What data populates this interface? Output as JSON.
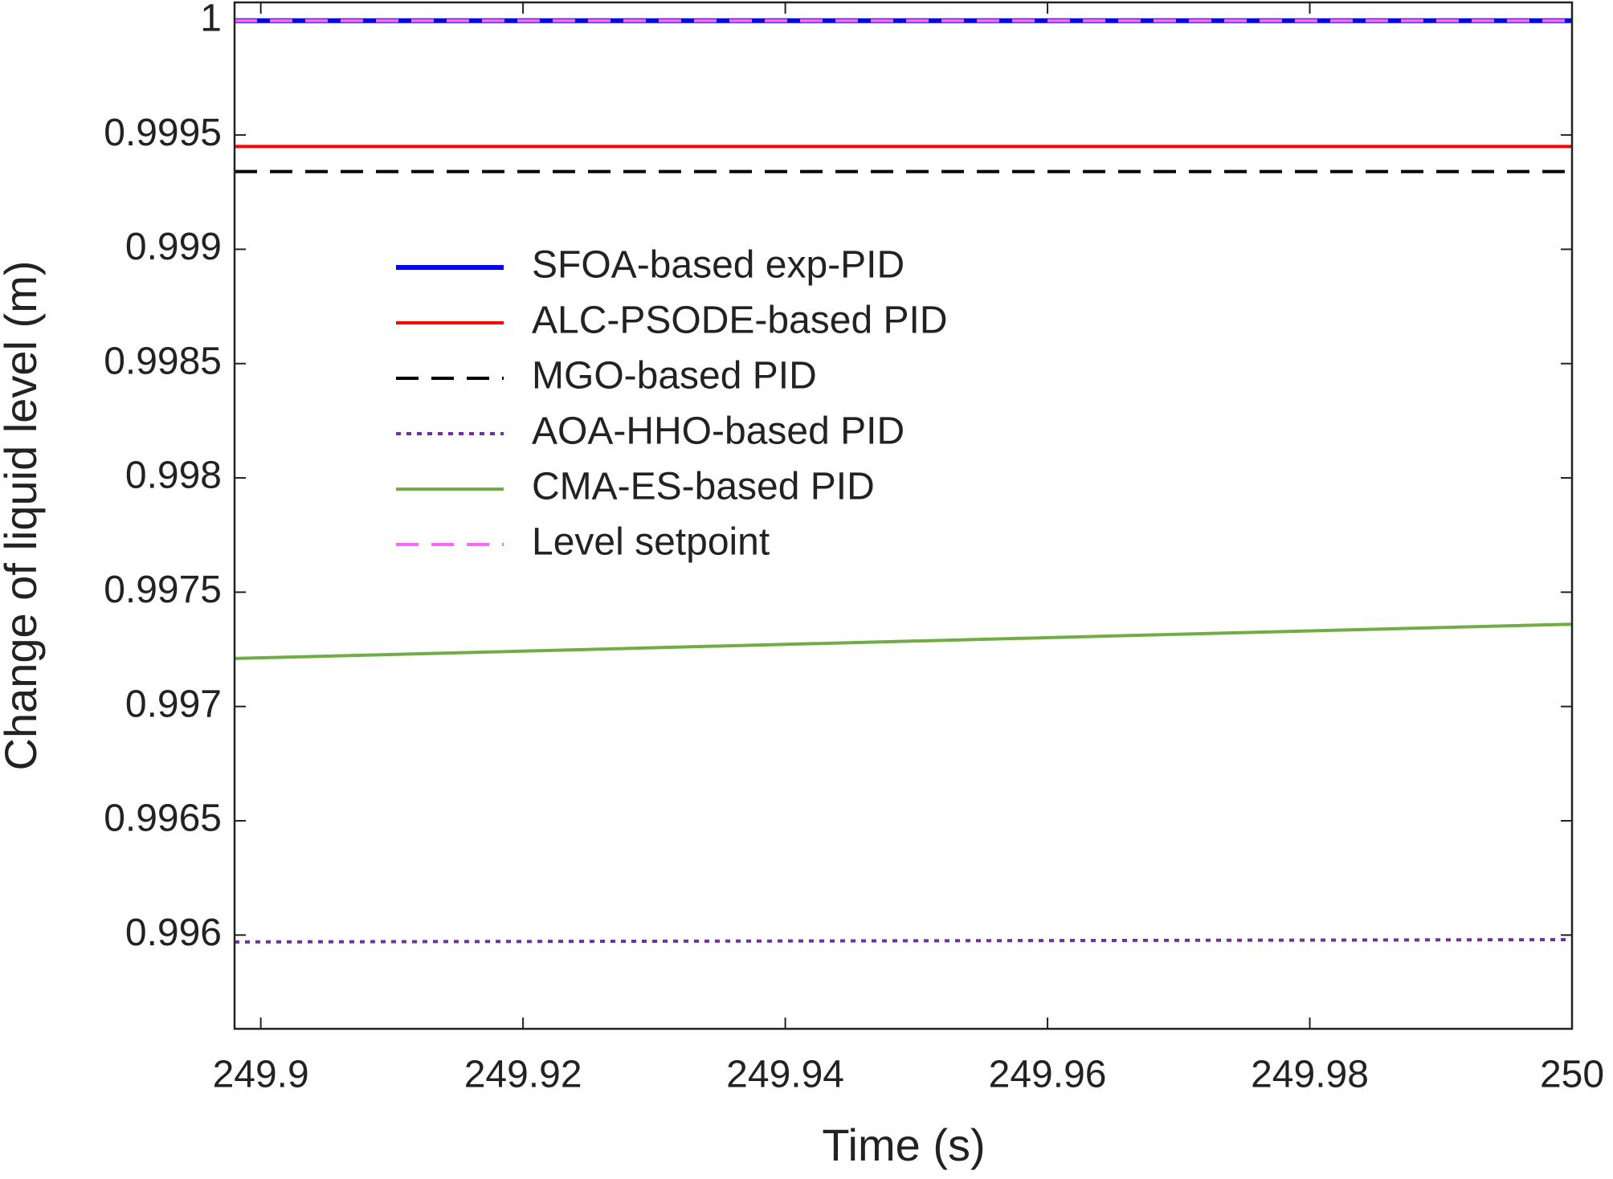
{
  "chart_data": {
    "type": "line",
    "xlabel": "Time (s)",
    "ylabel": "Change of liquid level (m)",
    "x": [
      249.898,
      250
    ],
    "series": [
      {
        "name": "SFOA-based exp-PID",
        "color": "#0000ff",
        "linestyle": "solid",
        "values": [
          1,
          1
        ]
      },
      {
        "name": "ALC-PSODE-based PID",
        "color": "#ff0000",
        "linestyle": "solid",
        "values": [
          0.99945,
          0.99945
        ]
      },
      {
        "name": "MGO-based PID",
        "color": "#000000",
        "linestyle": "dashed",
        "values": [
          0.99934,
          0.99934
        ]
      },
      {
        "name": "AOA-HHO-based PID",
        "color": "#7030a0",
        "linestyle": "dotted",
        "values": [
          0.99597,
          0.99598
        ]
      },
      {
        "name": "CMA-ES-based PID",
        "color": "#70ad47",
        "linestyle": "solid",
        "values": [
          0.99721,
          0.99736
        ]
      },
      {
        "name": "Level setpoint",
        "color": "#ff66ff",
        "linestyle": "dashed",
        "values": [
          1,
          1
        ]
      }
    ],
    "xlim": [
      249.898,
      250
    ],
    "xticks": [
      249.9,
      249.92,
      249.94,
      249.96,
      249.98,
      250
    ],
    "ylim": [
      0.99559,
      1.00008
    ],
    "yticks": [
      0.996,
      0.9965,
      0.997,
      0.9975,
      0.998,
      0.9985,
      0.999,
      0.9995,
      1
    ],
    "grid": false,
    "legend": "upper left"
  }
}
